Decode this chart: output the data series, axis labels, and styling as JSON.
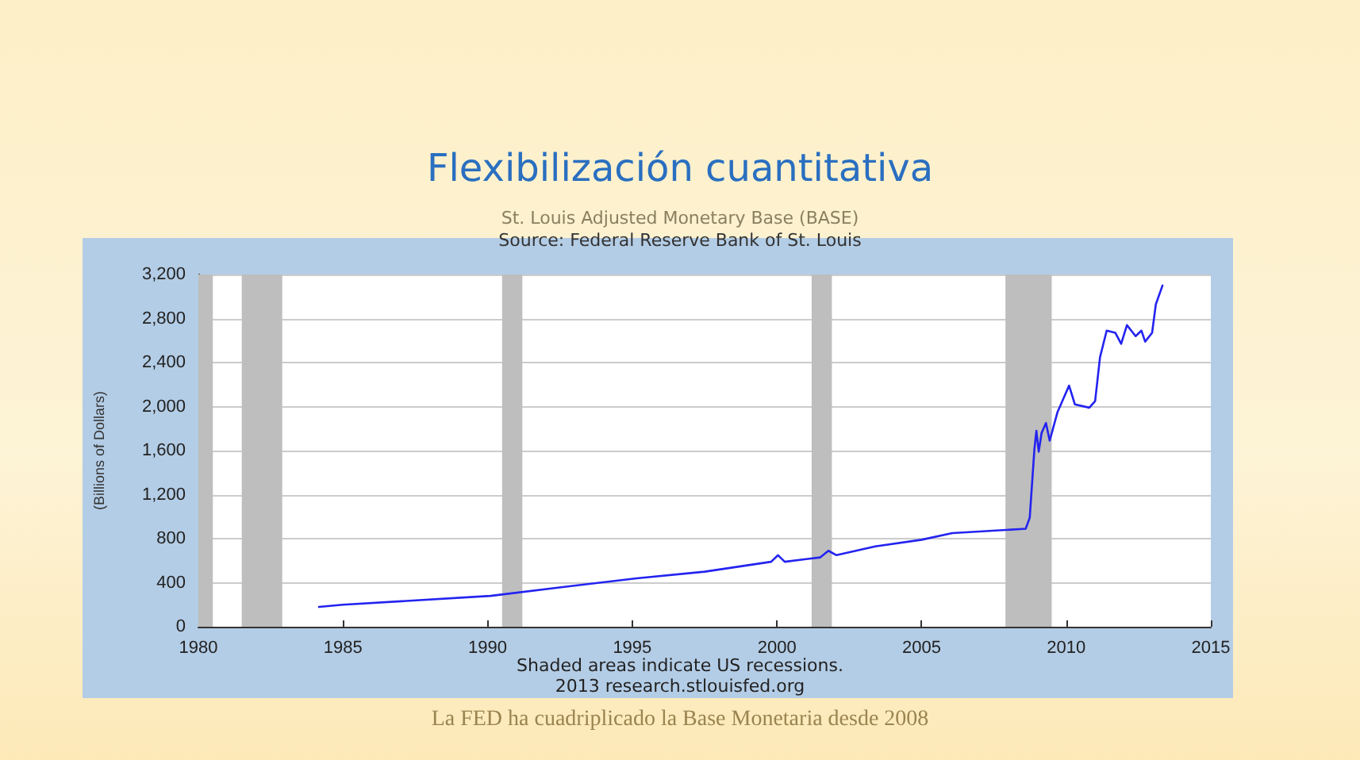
{
  "chart_data": {
    "type": "line",
    "title": "Flexibilización cuantitativa",
    "subtitle": "St. Louis Adjusted Monetary Base (BASE)",
    "ylabel": "(Billions of Dollars)",
    "annotations": [
      "Source: Federal Reserve Bank of St. Louis",
      "Shaded areas indicate US recessions.",
      "2013 research.stlouisfed.org",
      "La FED ha cuadriplicado la Base Monetaria desde 2008"
    ],
    "series": [
      {
        "color": "#2323f0",
        "x": [
          1984.17,
          1985.0,
          1990.1,
          1992.6,
          1995.15,
          1997.5,
          1999.8,
          2000.04,
          2000.27,
          2001.5,
          2001.78,
          2002.06,
          2003.4,
          2005.0,
          2006.06,
          2008.6,
          2008.74,
          2008.9,
          2008.97,
          2009.05,
          2009.15,
          2009.3,
          2009.43,
          2009.7,
          2009.9,
          2010.1,
          2010.3,
          2010.8,
          2011.0,
          2011.17,
          2011.4,
          2011.7,
          2011.9,
          2012.1,
          2012.4,
          2012.6,
          2012.73,
          2012.97,
          2013.1,
          2013.33
        ],
        "values": [
          180,
          200,
          280,
          360,
          440,
          500,
          590,
          650,
          590,
          630,
          690,
          650,
          730,
          790,
          850,
          890,
          990,
          1610,
          1780,
          1590,
          1760,
          1850,
          1690,
          1950,
          2070,
          2190,
          2020,
          1990,
          2050,
          2450,
          2690,
          2670,
          2570,
          2740,
          2640,
          2690,
          2590,
          2670,
          2930,
          3100
        ]
      }
    ],
    "xlim": [
      1980,
      2015
    ],
    "xticks": [
      1980,
      1985,
      1990,
      1995,
      2000,
      2005,
      2010,
      2015
    ],
    "ylim": [
      0,
      3200
    ],
    "yticks": [
      0,
      400,
      800,
      {
        "value": 1200,
        "label": "1,200"
      },
      {
        "value": 1600,
        "label": "1,600"
      },
      {
        "value": 2000,
        "label": "2,000"
      },
      {
        "value": 2400,
        "label": "2,400"
      },
      {
        "value": 2800,
        "label": "2,800"
      },
      {
        "value": 3200,
        "label": "3,200"
      }
    ],
    "bands": [
      {
        "axis": "x",
        "from": 1980.0,
        "to": 1980.5,
        "color": "#bebebe"
      },
      {
        "axis": "x",
        "from": 1981.5,
        "to": 1982.9,
        "color": "#bebebe"
      },
      {
        "axis": "x",
        "from": 1990.5,
        "to": 1991.2,
        "color": "#bebebe"
      },
      {
        "axis": "x",
        "from": 2001.2,
        "to": 2001.9,
        "color": "#bebebe"
      },
      {
        "axis": "x",
        "from": 2007.9,
        "to": 2009.5,
        "color": "#bebebe"
      }
    ],
    "grid": "y",
    "marker": "none",
    "line_style": "solid"
  }
}
